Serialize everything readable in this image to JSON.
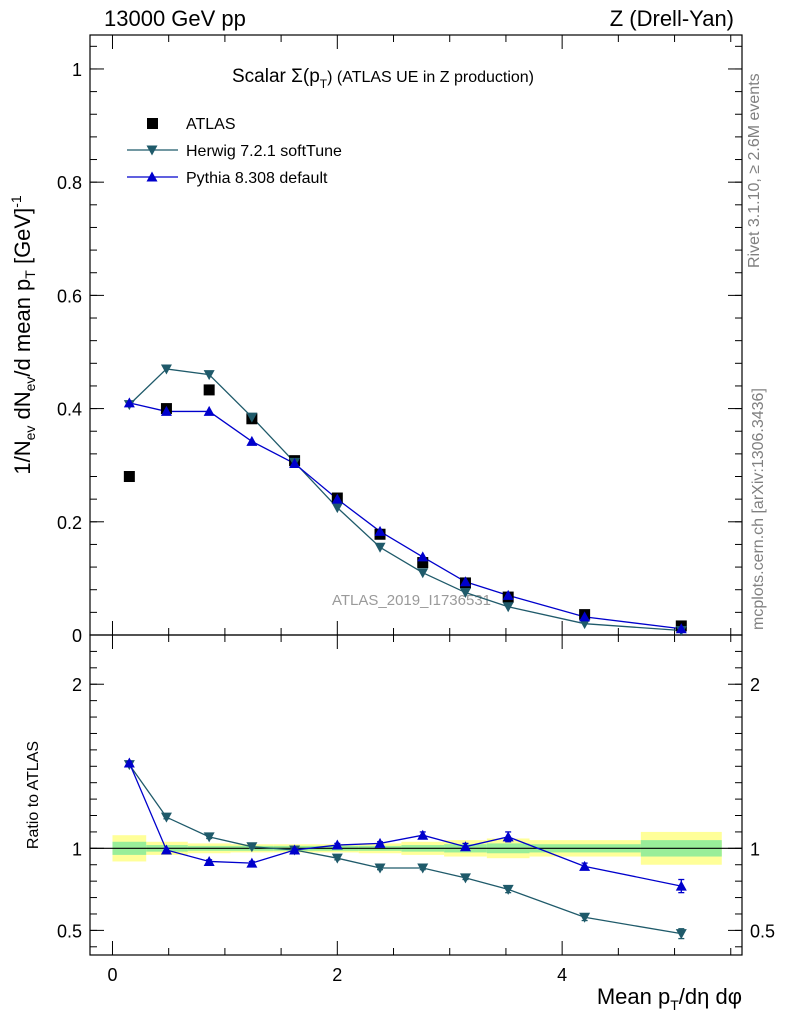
{
  "header": {
    "left": "13000 GeV pp",
    "right": "Z (Drell-Yan)"
  },
  "side_text": {
    "top": "Rivet 3.1.10, ≥ 2.6M events",
    "bottom": "mcplots.cern.ch [arXiv:1306.3436]"
  },
  "watermark": "ATLAS_2019_I1736531",
  "chart_data": [
    {
      "type": "scatter",
      "title": "Scalar Σ(p_T) (ATLAS UE in Z production)",
      "title_parts": {
        "a": "Scalar Σ(p",
        "sub": "T",
        "b": ") (ATLAS UE in Z production)"
      },
      "ylabel": "1/N_ev dN_ev/d mean p_T [GeV]^-1",
      "xlim": [
        -0.2,
        5.6
      ],
      "ylim": [
        0,
        1.06
      ],
      "yticks": [
        0,
        0.2,
        0.4,
        0.6,
        0.8,
        1
      ],
      "ytick_labels": [
        "0",
        "0.2",
        "0.4",
        "0.6",
        "0.8",
        "1"
      ],
      "legend_position": "top-left",
      "x": [
        0.15,
        0.48,
        0.86,
        1.24,
        1.62,
        2.0,
        2.38,
        2.76,
        3.14,
        3.52,
        4.2,
        5.06
      ],
      "series": [
        {
          "name": "ATLAS",
          "marker": "square",
          "color": "#000000",
          "line": false,
          "values": [
            0.28,
            0.4,
            0.433,
            0.382,
            0.308,
            0.242,
            0.178,
            0.128,
            0.092,
            0.067,
            0.036,
            0.016
          ]
        },
        {
          "name": "Herwig 7.2.1 softTune",
          "marker": "triangle-down",
          "color": "#1f5a6a",
          "line": true,
          "values": [
            0.407,
            0.47,
            0.46,
            0.385,
            0.305,
            0.225,
            0.155,
            0.11,
            0.075,
            0.05,
            0.02,
            0.008
          ]
        },
        {
          "name": "Pythia 8.308 default",
          "marker": "triangle-up",
          "color": "#0000cc",
          "line": true,
          "values": [
            0.41,
            0.395,
            0.395,
            0.342,
            0.303,
            0.24,
            0.183,
            0.138,
            0.094,
            0.07,
            0.032,
            0.011
          ]
        }
      ]
    },
    {
      "type": "scatter",
      "ylabel": "Ratio to ATLAS",
      "xlabel": "Mean p_T/dη dφ",
      "xlabel_parts": {
        "a": "Mean p",
        "sub": "T",
        "b": "/dη dφ"
      },
      "xlim": [
        -0.2,
        5.6
      ],
      "ylim": [
        0.35,
        2.3
      ],
      "xticks": [
        0,
        2,
        4
      ],
      "xtick_labels": [
        "0",
        "2",
        "4"
      ],
      "yticks": [
        0.5,
        1,
        2
      ],
      "ytick_labels": [
        "0.5",
        "1",
        "2"
      ],
      "reference": 1,
      "bands": [
        {
          "x0": 0.0,
          "x1": 0.3,
          "yellow": [
            0.92,
            1.08
          ],
          "green": [
            0.96,
            1.04
          ]
        },
        {
          "x0": 0.3,
          "x1": 0.67,
          "yellow": [
            0.96,
            1.04
          ],
          "green": [
            0.98,
            1.02
          ]
        },
        {
          "x0": 0.67,
          "x1": 1.05,
          "yellow": [
            0.97,
            1.03
          ],
          "green": [
            0.985,
            1.015
          ]
        },
        {
          "x0": 1.05,
          "x1": 1.43,
          "yellow": [
            0.975,
            1.025
          ],
          "green": [
            0.985,
            1.015
          ]
        },
        {
          "x0": 1.43,
          "x1": 1.81,
          "yellow": [
            0.975,
            1.025
          ],
          "green": [
            0.985,
            1.015
          ]
        },
        {
          "x0": 1.81,
          "x1": 2.19,
          "yellow": [
            0.975,
            1.025
          ],
          "green": [
            0.985,
            1.015
          ]
        },
        {
          "x0": 2.19,
          "x1": 2.57,
          "yellow": [
            0.97,
            1.03
          ],
          "green": [
            0.985,
            1.015
          ]
        },
        {
          "x0": 2.57,
          "x1": 2.95,
          "yellow": [
            0.96,
            1.04
          ],
          "green": [
            0.98,
            1.02
          ]
        },
        {
          "x0": 2.95,
          "x1": 3.33,
          "yellow": [
            0.95,
            1.05
          ],
          "green": [
            0.975,
            1.025
          ]
        },
        {
          "x0": 3.33,
          "x1": 3.71,
          "yellow": [
            0.94,
            1.06
          ],
          "green": [
            0.97,
            1.03
          ]
        },
        {
          "x0": 3.71,
          "x1": 4.7,
          "yellow": [
            0.95,
            1.05
          ],
          "green": [
            0.975,
            1.025
          ]
        },
        {
          "x0": 4.7,
          "x1": 5.42,
          "yellow": [
            0.9,
            1.1
          ],
          "green": [
            0.95,
            1.05
          ]
        }
      ],
      "x": [
        0.15,
        0.48,
        0.86,
        1.24,
        1.62,
        2.0,
        2.38,
        2.76,
        3.14,
        3.52,
        4.2,
        5.06
      ],
      "series": [
        {
          "name": "Herwig 7.2.1 softTune",
          "marker": "triangle-down",
          "color": "#1f5a6a",
          "values": [
            1.51,
            1.19,
            1.07,
            1.01,
            0.99,
            0.94,
            0.88,
            0.88,
            0.82,
            0.75,
            0.58,
            0.48
          ],
          "errors": [
            0.01,
            0.01,
            0.01,
            0.01,
            0.01,
            0.01,
            0.01,
            0.01,
            0.01,
            0.02,
            0.02,
            0.03
          ]
        },
        {
          "name": "Pythia 8.308 default",
          "marker": "triangle-up",
          "color": "#0000cc",
          "values": [
            1.52,
            0.99,
            0.92,
            0.91,
            0.99,
            1.02,
            1.03,
            1.08,
            1.01,
            1.07,
            0.89,
            0.77
          ],
          "errors": [
            0.01,
            0.01,
            0.01,
            0.01,
            0.01,
            0.01,
            0.01,
            0.02,
            0.02,
            0.03,
            0.02,
            0.04
          ]
        }
      ]
    }
  ]
}
